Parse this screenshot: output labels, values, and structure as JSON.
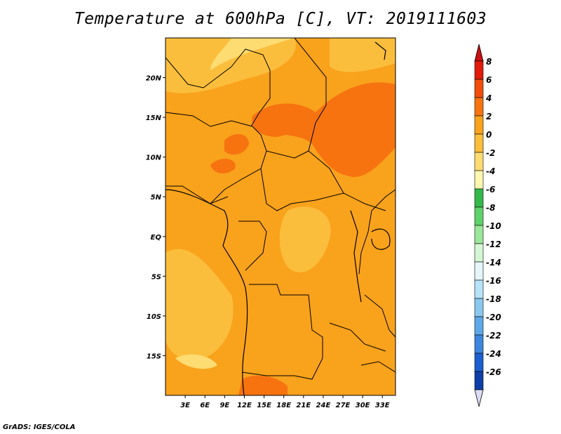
{
  "title": "Temperature at 600hPa [C], VT: 2019111603",
  "footer": "GrADS: IGES/COLA",
  "map": {
    "lon_range": [
      0,
      35
    ],
    "lat_range": [
      -20,
      25
    ],
    "lat_ticks": [
      {
        "value": 20,
        "label": "20N"
      },
      {
        "value": 15,
        "label": "15N"
      },
      {
        "value": 10,
        "label": "10N"
      },
      {
        "value": 5,
        "label": "5N"
      },
      {
        "value": 0,
        "label": "EQ"
      },
      {
        "value": -5,
        "label": "5S"
      },
      {
        "value": -10,
        "label": "10S"
      },
      {
        "value": -15,
        "label": "15S"
      }
    ],
    "lon_ticks": [
      {
        "value": 3,
        "label": "3E"
      },
      {
        "value": 6,
        "label": "6E"
      },
      {
        "value": 9,
        "label": "9E"
      },
      {
        "value": 12,
        "label": "12E"
      },
      {
        "value": 15,
        "label": "15E"
      },
      {
        "value": 18,
        "label": "18E"
      },
      {
        "value": 21,
        "label": "21E"
      },
      {
        "value": 24,
        "label": "24E"
      },
      {
        "value": 27,
        "label": "27E"
      },
      {
        "value": 30,
        "label": "30E"
      },
      {
        "value": 33,
        "label": "33E"
      }
    ]
  },
  "colorbar": {
    "levels": [
      {
        "label": "8",
        "color": "#e21a0a"
      },
      {
        "label": "6",
        "color": "#f24d0a"
      },
      {
        "label": "4",
        "color": "#f67310"
      },
      {
        "label": "2",
        "color": "#f9a21c"
      },
      {
        "label": "0",
        "color": "#fbbe3c"
      },
      {
        "label": "-2",
        "color": "#fddc72"
      },
      {
        "label": "-4",
        "color": "#fff6b0"
      },
      {
        "label": "-6",
        "color": "#33b84a"
      },
      {
        "label": "-8",
        "color": "#5ed26a"
      },
      {
        "label": "-10",
        "color": "#9ae69a"
      },
      {
        "label": "-12",
        "color": "#d5f6d4"
      },
      {
        "label": "-14",
        "color": "#e5f6fb"
      },
      {
        "label": "-16",
        "color": "#b7e3f8"
      },
      {
        "label": "-18",
        "color": "#8bc8f0"
      },
      {
        "label": "-20",
        "color": "#5ea8e9"
      },
      {
        "label": "-22",
        "color": "#3d86e0"
      },
      {
        "label": "-24",
        "color": "#1b5fd0"
      },
      {
        "label": "-26",
        "color": "#0e3fa8"
      }
    ],
    "top_color": "#c81010",
    "bottom_color": "#dcdcf8",
    "mid_color": "#0c1a78"
  }
}
